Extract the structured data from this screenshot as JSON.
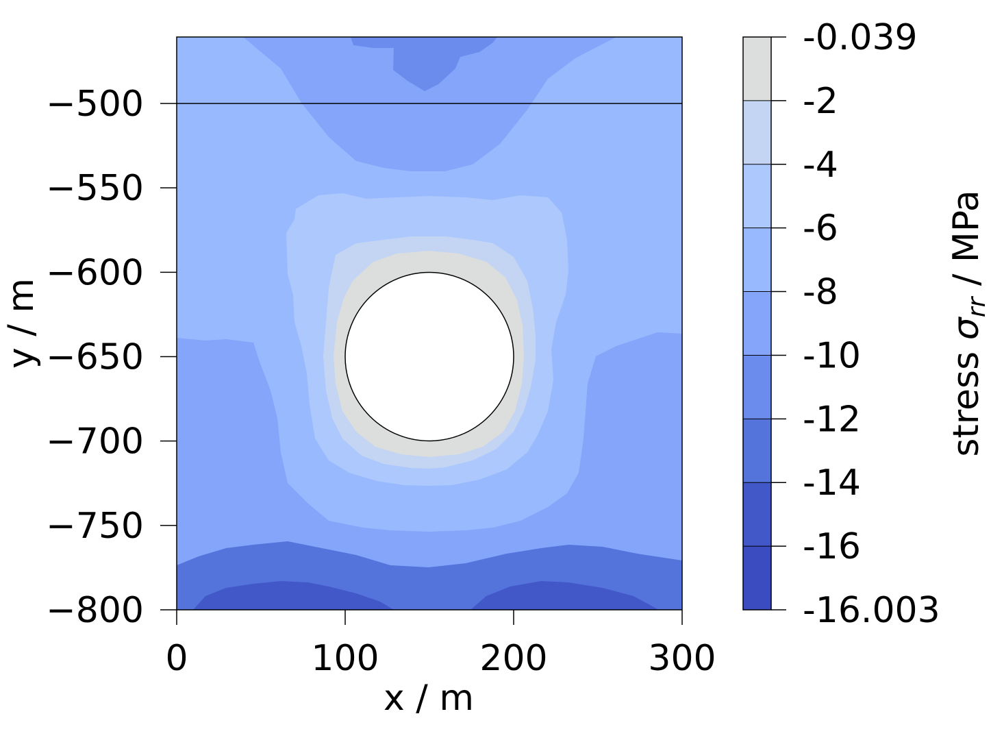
{
  "chart_data": {
    "type": "heatmap",
    "subtype": "filled-contour",
    "xlabel": "x / m",
    "ylabel": "y / m",
    "xlim": [
      0,
      300
    ],
    "ylim": [
      -800,
      -460
    ],
    "x_ticks": [
      "0",
      "100",
      "200",
      "300"
    ],
    "y_ticks": [
      "−500",
      "−550",
      "−600",
      "−650",
      "−700",
      "−750",
      "−800"
    ],
    "x_tick_values": [
      0,
      100,
      200,
      300
    ],
    "y_tick_values": [
      -500,
      -550,
      -600,
      -650,
      -700,
      -750,
      -800
    ],
    "reference_line_y": -500,
    "cavity": {
      "center_x": 150,
      "center_y": -650,
      "radius": 50
    },
    "colorbar": {
      "label_main": "stress ",
      "label_symbol": "σ",
      "label_subscript": "rr",
      "label_unit": " / MPa",
      "tick_labels": [
        "-0.039",
        "-2",
        "-4",
        "-6",
        "-8",
        "-10",
        "-12",
        "-14",
        "-16",
        "-16.003"
      ],
      "levels": [
        -0.039,
        -2,
        -4,
        -6,
        -8,
        -10,
        -12,
        -14,
        -16,
        -16.003
      ],
      "band_colors": [
        "#dcdddd",
        "#c4d5f3",
        "#adc8fc",
        "#98b9fe",
        "#84a5fa",
        "#6c8ced",
        "#5473db",
        "#4358c8",
        "#3b4cc0"
      ]
    },
    "contour_bands": [
      {
        "range": [
          -10,
          -8
        ],
        "color": "#84a5fa",
        "x": [
          0,
          42,
          100,
          150,
          200,
          258,
          300
        ],
        "y_top": [
          -470,
          -470,
          -505,
          -530,
          -505,
          -470,
          -470
        ],
        "y_bottom": [
          -800,
          -800,
          -800,
          -800,
          -800,
          -800,
          -800
        ]
      },
      {
        "range": [
          -12,
          -10
        ],
        "color": "#6c8ced",
        "x": [
          128,
          150,
          172
        ],
        "y_top": [
          -475,
          -492,
          -475
        ],
        "y_bottom": [
          -460,
          -460,
          -460
        ]
      },
      {
        "range": [
          -8,
          -6
        ],
        "color": "#98b9fe",
        "x": [
          0,
          40,
          62,
          100,
          150,
          200,
          240,
          300
        ],
        "y_top": [
          -460,
          -460,
          -475,
          -500,
          -505,
          -500,
          -475,
          -460
        ],
        "y_bottom": [
          -638,
          -638,
          -660,
          -745,
          -760,
          -745,
          -660,
          -638
        ]
      },
      {
        "range": [
          -6,
          -4
        ],
        "color": "#adc8fc",
        "x": [
          65,
          100,
          150,
          200,
          235
        ],
        "y_top": [
          -575,
          -565,
          -563,
          -565,
          -575
        ],
        "y_bottom": [
          -650,
          -713,
          -725,
          -713,
          -650
        ]
      },
      {
        "range": [
          -4,
          -2
        ],
        "color": "#c4d5f3",
        "x": [
          95,
          150,
          205
        ],
        "y_top": [
          -590,
          -580,
          -590
        ],
        "y_bottom": [
          -680,
          -708,
          -680
        ]
      },
      {
        "range": [
          -2,
          -0.039
        ],
        "color": "#dcdddd",
        "x": [
          95,
          150,
          205
        ],
        "y_top": [
          -620,
          -588,
          -620
        ],
        "y_bottom": [
          -690,
          -702,
          -690
        ]
      },
      {
        "range": [
          -14,
          -12
        ],
        "color": "#5473db",
        "x": [
          0,
          100,
          150,
          200,
          300
        ],
        "y_top": [
          -775,
          -782,
          -792,
          -782,
          -775
        ],
        "y_bottom": [
          -800,
          -800,
          -800,
          -800,
          -800
        ]
      },
      {
        "range": [
          -16,
          -14
        ],
        "color": "#4358c8",
        "x": [
          10,
          70,
          100,
          128,
          178,
          230,
          290
        ],
        "y_top": [
          -800,
          -787,
          -790,
          -800,
          -800,
          -787,
          -800
        ],
        "y_bottom": [
          -800,
          -800,
          -800,
          -800,
          -800,
          -800,
          -800
        ]
      }
    ]
  }
}
